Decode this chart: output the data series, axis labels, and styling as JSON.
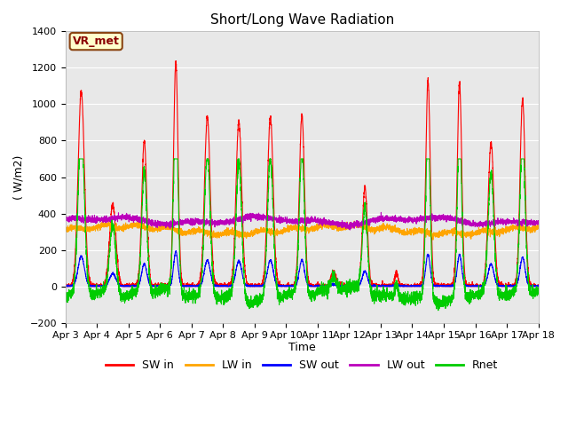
{
  "title": "Short/Long Wave Radiation",
  "xlabel": "Time",
  "ylabel": "( W/m2)",
  "ylim": [
    -200,
    1400
  ],
  "xlim": [
    0,
    15
  ],
  "x_tick_labels": [
    "Apr 3",
    "Apr 4",
    "Apr 5",
    "Apr 6",
    "Apr 7",
    "Apr 8",
    "Apr 9",
    "Apr 10",
    "Apr 11",
    "Apr 12",
    "Apr 13",
    "Apr 14",
    "Apr 15",
    "Apr 16",
    "Apr 17",
    "Apr 18"
  ],
  "x_tick_positions": [
    0,
    1,
    2,
    3,
    4,
    5,
    6,
    7,
    8,
    9,
    10,
    11,
    12,
    13,
    14,
    15
  ],
  "annotation_text": "VR_met",
  "plot_bg_color": "#e8e8e8",
  "fig_bg_color": "#ffffff",
  "legend_entries": [
    "SW in",
    "LW in",
    "SW out",
    "LW out",
    "Rnet"
  ],
  "line_colors": {
    "SW_in": "#ff0000",
    "LW_in": "#ffa500",
    "SW_out": "#0000ff",
    "LW_out": "#bb00bb",
    "Rnet": "#00cc00"
  },
  "line_width": 0.8,
  "grid_color": "#ffffff",
  "title_fontsize": 11,
  "label_fontsize": 9,
  "tick_fontsize": 8,
  "legend_fontsize": 9,
  "annotation_color": "#8B0000",
  "annotation_bg": "#ffffcc",
  "annotation_edge": "#8B4513"
}
